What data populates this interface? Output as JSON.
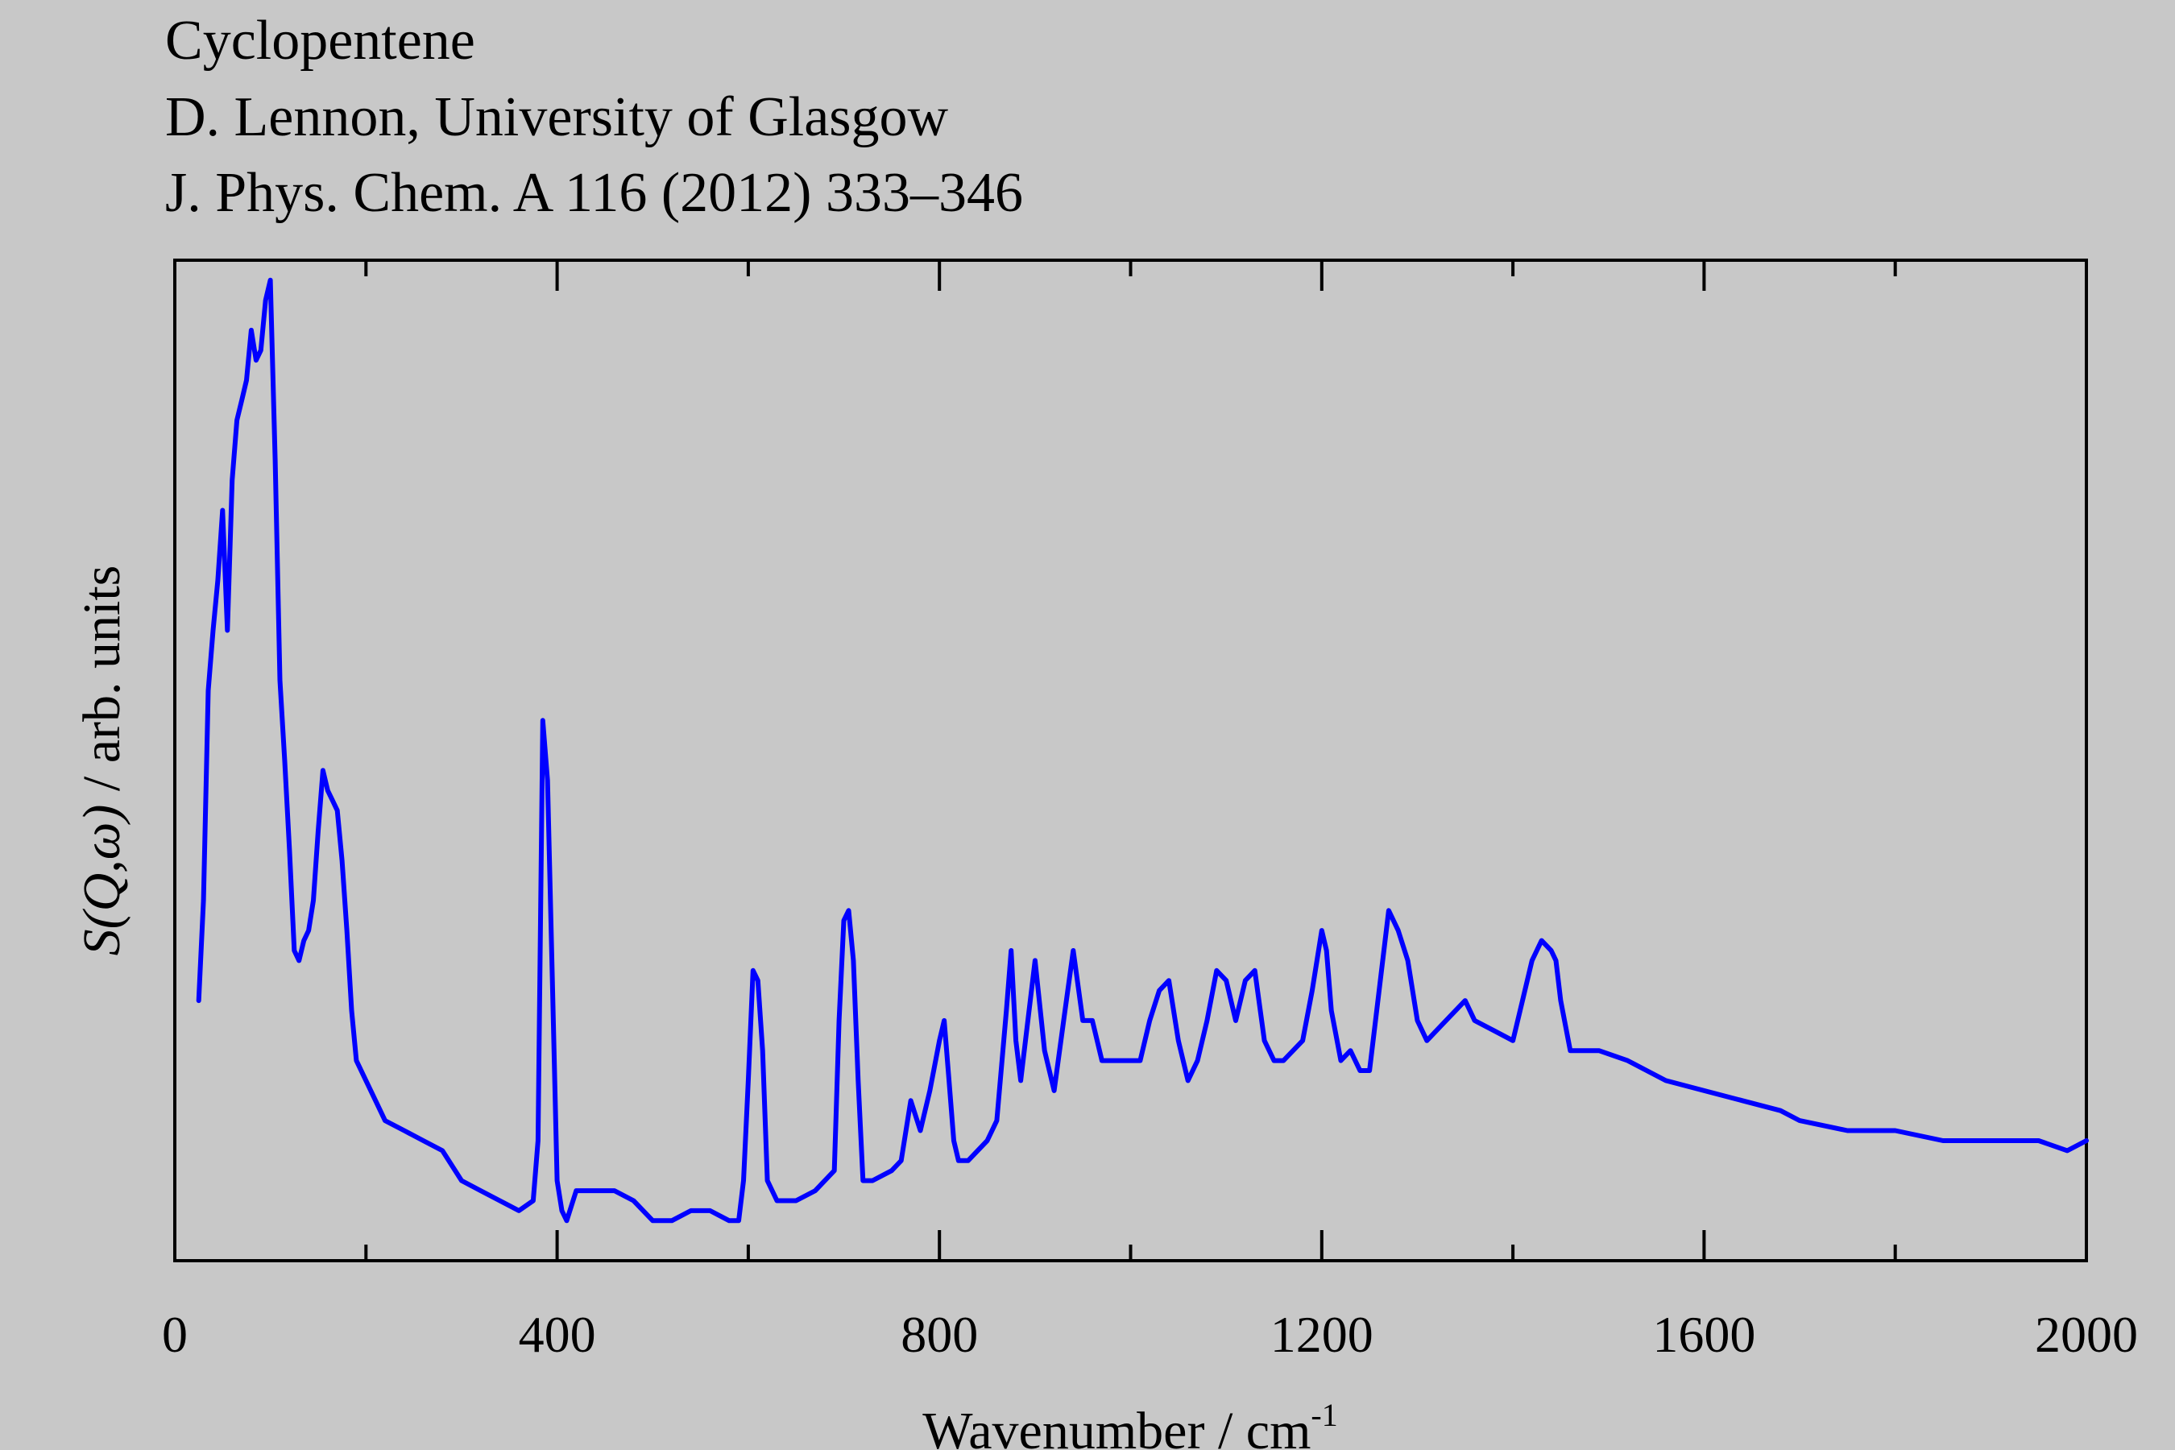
{
  "header": {
    "line1": "Cyclopentene",
    "line2": "D. Lennon, University of Glasgow",
    "line3": "J. Phys. Chem. A 116 (2012) 333–346"
  },
  "chart_data": {
    "type": "line",
    "series_color": "#0000ff",
    "xlabel_main": "Wavenumber / cm",
    "xlabel_sup": "-1",
    "ylabel_parts": [
      "S(Q,ω)",
      " / arb. units"
    ],
    "xlim": [
      0,
      2000
    ],
    "ylim": [
      0,
      100
    ],
    "x_ticks": [
      0,
      400,
      800,
      1200,
      1600,
      2000
    ],
    "x_tick_labels": [
      "0",
      "400",
      "800",
      "1200",
      "1600",
      "2000"
    ],
    "x_minor_ticks": [
      200,
      600,
      1000,
      1400,
      1800
    ],
    "y_ticks_shown": false,
    "grid": false,
    "legend": "none",
    "x": [
      25,
      30,
      35,
      40,
      45,
      50,
      55,
      60,
      65,
      70,
      75,
      80,
      85,
      90,
      95,
      100,
      105,
      110,
      115,
      120,
      125,
      130,
      135,
      140,
      145,
      150,
      155,
      160,
      165,
      170,
      175,
      180,
      185,
      190,
      200,
      210,
      220,
      240,
      260,
      280,
      300,
      320,
      340,
      360,
      375,
      380,
      385,
      390,
      395,
      400,
      405,
      410,
      420,
      440,
      460,
      480,
      500,
      520,
      540,
      560,
      580,
      590,
      595,
      600,
      605,
      610,
      615,
      620,
      630,
      650,
      670,
      690,
      695,
      700,
      705,
      710,
      715,
      720,
      730,
      750,
      760,
      770,
      780,
      790,
      800,
      805,
      810,
      815,
      820,
      830,
      850,
      860,
      870,
      875,
      880,
      885,
      890,
      900,
      910,
      920,
      930,
      940,
      950,
      960,
      970,
      980,
      990,
      1000,
      1010,
      1020,
      1030,
      1040,
      1050,
      1060,
      1070,
      1080,
      1090,
      1100,
      1110,
      1120,
      1130,
      1140,
      1150,
      1160,
      1180,
      1190,
      1200,
      1205,
      1210,
      1220,
      1230,
      1240,
      1250,
      1260,
      1270,
      1275,
      1280,
      1290,
      1300,
      1310,
      1320,
      1330,
      1340,
      1350,
      1360,
      1380,
      1400,
      1410,
      1420,
      1430,
      1440,
      1445,
      1450,
      1460,
      1470,
      1490,
      1520,
      1540,
      1560,
      1600,
      1640,
      1680,
      1700,
      1750,
      1800,
      1850,
      1900,
      1950,
      1980,
      2000
    ],
    "y": [
      26,
      36,
      57,
      63,
      68,
      75,
      63,
      78,
      84,
      86,
      88,
      93,
      90,
      91,
      96,
      98,
      80,
      58,
      50,
      41,
      31,
      30,
      32,
      33,
      36,
      43,
      49,
      47,
      46,
      45,
      40,
      33,
      25,
      20,
      18,
      16,
      14,
      13,
      12,
      11,
      8,
      7,
      6,
      5,
      6,
      12,
      54,
      48,
      28,
      8,
      5,
      4,
      7,
      7,
      7,
      6,
      4,
      4,
      5,
      5,
      4,
      4,
      8,
      18,
      29,
      28,
      21,
      8,
      6,
      6,
      7,
      9,
      24,
      34,
      35,
      30,
      18,
      8,
      8,
      9,
      10,
      16,
      13,
      17,
      22,
      24,
      18,
      12,
      10,
      10,
      12,
      14,
      25,
      31,
      22,
      18,
      22,
      30,
      21,
      17,
      24,
      31,
      24,
      24,
      20,
      20,
      20,
      20,
      20,
      24,
      27,
      28,
      22,
      18,
      20,
      24,
      29,
      28,
      24,
      28,
      29,
      22,
      20,
      20,
      22,
      27,
      33,
      31,
      25,
      20,
      21,
      19,
      19,
      27,
      35,
      34,
      33,
      30,
      24,
      22,
      23,
      24,
      25,
      26,
      24,
      23,
      22,
      26,
      30,
      32,
      31,
      30,
      26,
      21,
      21,
      21,
      20,
      19,
      18,
      17,
      16,
      15,
      14,
      13,
      13,
      12,
      12,
      12,
      11,
      12
    ]
  }
}
